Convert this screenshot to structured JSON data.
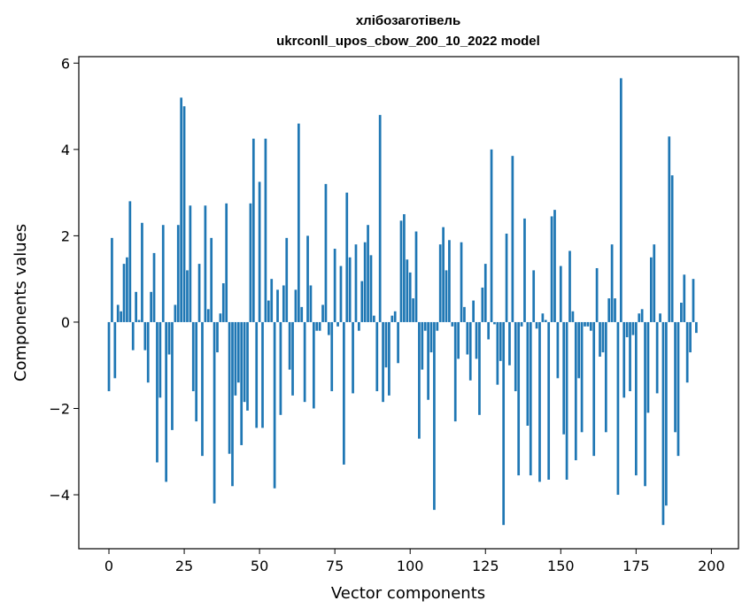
{
  "chart_data": {
    "type": "bar",
    "title": "хлібозаготівель",
    "subtitle": "ukrconll_upos_cbow_200_10_2022 model",
    "xlabel": "Vector components",
    "ylabel": "Components values",
    "xlim": [
      -10,
      209
    ],
    "ylim": [
      -5.25,
      6.15
    ],
    "xticks": [
      0,
      25,
      50,
      75,
      100,
      125,
      150,
      175,
      200
    ],
    "yticks": [
      -4,
      -2,
      0,
      2,
      4,
      6
    ],
    "ytick_labels": [
      "−4",
      "−2",
      "0",
      "2",
      "4",
      "6"
    ],
    "bar_color": "#1f77b4",
    "grid": false,
    "values": [
      -1.6,
      1.95,
      -1.3,
      0.4,
      0.25,
      1.35,
      1.5,
      2.8,
      -0.65,
      0.7,
      0.05,
      2.3,
      -0.65,
      -1.4,
      0.7,
      1.6,
      -3.25,
      -1.75,
      2.25,
      -3.7,
      -0.75,
      -2.5,
      0.4,
      2.25,
      5.2,
      5.0,
      1.2,
      2.7,
      -1.6,
      -2.3,
      1.35,
      -3.1,
      2.7,
      0.3,
      1.95,
      -4.2,
      -0.7,
      0.2,
      0.9,
      2.75,
      -3.05,
      -3.8,
      -1.7,
      -1.4,
      -2.85,
      -1.85,
      -2.05,
      2.75,
      4.25,
      -2.45,
      3.25,
      -2.45,
      4.25,
      0.5,
      1.0,
      -3.85,
      0.75,
      -2.15,
      0.85,
      1.95,
      -1.1,
      -1.7,
      0.75,
      4.6,
      0.35,
      -1.85,
      2.0,
      0.85,
      -2.0,
      -0.2,
      -0.2,
      0.4,
      3.2,
      -0.3,
      -1.6,
      1.7,
      -0.1,
      1.3,
      -3.3,
      3.0,
      1.5,
      -1.65,
      1.8,
      -0.2,
      0.95,
      1.85,
      2.25,
      1.55,
      0.15,
      -1.6,
      4.8,
      -1.85,
      -1.05,
      -1.7,
      0.15,
      0.25,
      -0.95,
      2.35,
      2.5,
      1.45,
      1.15,
      0.55,
      2.1,
      -2.7,
      -1.1,
      -0.2,
      -1.8,
      -0.7,
      -4.35,
      -0.2,
      1.8,
      2.2,
      1.2,
      1.9,
      -0.1,
      -2.3,
      -0.85,
      1.85,
      0.35,
      -0.75,
      -1.35,
      0.5,
      -0.85,
      -2.15,
      0.8,
      1.35,
      -0.4,
      4.0,
      -0.05,
      -1.45,
      -0.9,
      -4.7,
      2.05,
      -1.0,
      3.85,
      -1.6,
      -3.55,
      -0.1,
      2.4,
      -2.4,
      -3.55,
      1.2,
      -0.15,
      -3.7,
      0.2,
      0.05,
      -3.65,
      2.45,
      2.6,
      -1.3,
      1.3,
      -2.6,
      -3.65,
      1.65,
      0.25,
      -3.2,
      -1.3,
      -2.55,
      -0.1,
      -0.1,
      -0.2,
      -3.1,
      1.25,
      -0.8,
      -0.7,
      -2.55,
      0.55,
      1.8,
      0.55,
      -4.0,
      5.65,
      -1.75,
      -0.35,
      -1.6,
      -0.3,
      -3.55,
      0.2,
      0.3,
      -3.8,
      -2.1,
      1.5,
      1.8,
      -1.65,
      0.2,
      -4.7,
      -4.25,
      4.3,
      3.4,
      -2.55,
      -3.1,
      0.45,
      1.1,
      -1.4,
      -0.7,
      1.0,
      -0.25
    ]
  }
}
